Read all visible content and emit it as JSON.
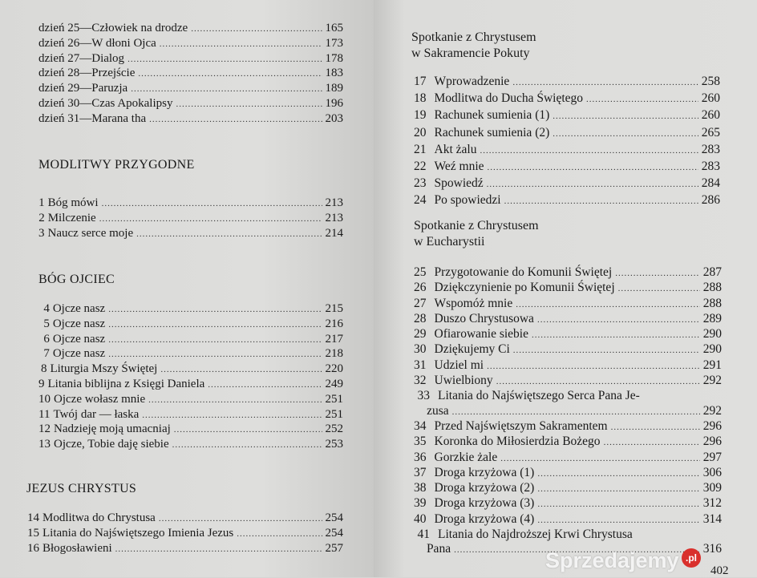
{
  "left_page": {
    "days": [
      {
        "day": "dzień 25",
        "title": "—Człowiek na drodze",
        "page": "165"
      },
      {
        "day": "dzień 26",
        "title": "—W dłoni Ojca",
        "page": "173"
      },
      {
        "day": "dzień 27",
        "title": "—Dialog",
        "page": "178"
      },
      {
        "day": "dzień 28",
        "title": "—Przejście",
        "page": "183"
      },
      {
        "day": "dzień 29",
        "title": "—Paruzja",
        "page": "189"
      },
      {
        "day": "dzień 30",
        "title": "—Czas Apokalipsy",
        "page": "196"
      },
      {
        "day": "dzień 31",
        "title": "—Marana tha",
        "page": "203"
      }
    ],
    "sections": [
      {
        "heading": "MODLITWY PRZYGODNE",
        "entries": [
          {
            "num": "1",
            "title": "Bóg mówi",
            "page": "213"
          },
          {
            "num": "2",
            "title": "Milczenie",
            "page": "213"
          },
          {
            "num": "3",
            "title": "Naucz serce moje",
            "page": "214"
          }
        ]
      },
      {
        "heading": "BÓG OJCIEC",
        "entries": [
          {
            "num": "4",
            "title": "Ojcze nasz",
            "page": "215"
          },
          {
            "num": "5",
            "title": "Ojcze nasz",
            "page": "216"
          },
          {
            "num": "6",
            "title": "Ojcze nasz",
            "page": "217"
          },
          {
            "num": "7",
            "title": "Ojcze nasz",
            "page": "218"
          },
          {
            "num": "8",
            "title": "Liturgia Mszy Świętej",
            "page": "220"
          },
          {
            "num": "9",
            "title": "Litania biblijna z Księgi Daniela",
            "page": "249"
          },
          {
            "num": "10",
            "title": "Ojcze wołasz mnie",
            "page": "251"
          },
          {
            "num": "11",
            "title": "Twój dar — łaska",
            "page": "251"
          },
          {
            "num": "12",
            "title": "Nadzieję moją umacniaj",
            "page": "252"
          },
          {
            "num": "13",
            "title": "Ojcze, Tobie daję siebie",
            "page": "253"
          }
        ]
      },
      {
        "heading": "JEZUS CHRYSTUS",
        "entries": [
          {
            "num": "14",
            "title": "Modlitwa do Chrystusa",
            "page": "254"
          },
          {
            "num": "15",
            "title": "Litania do Najświętszego Imienia Jezus",
            "page": "254"
          },
          {
            "num": "16",
            "title": "Błogosławieni",
            "page": "257"
          }
        ]
      }
    ]
  },
  "right_page": {
    "sections": [
      {
        "heading_lines": [
          "Spotkanie z Chrystusem",
          "w Sakramencie Pokuty"
        ],
        "entries": [
          {
            "num": "17",
            "title": "Wprowadzenie",
            "page": "258"
          },
          {
            "num": "18",
            "title": "Modlitwa do Ducha Świętego",
            "page": "260"
          },
          {
            "num": "19",
            "title": "Rachunek sumienia (1)",
            "page": "260"
          },
          {
            "num": "20",
            "title": "Rachunek sumienia (2)",
            "page": "265"
          },
          {
            "num": "21",
            "title": "Akt żalu",
            "page": "283"
          },
          {
            "num": "22",
            "title": "Weź mnie",
            "page": "283"
          },
          {
            "num": "23",
            "title": "Spowiedź",
            "page": "284"
          },
          {
            "num": "24",
            "title": "Po spowiedzi",
            "page": "286"
          }
        ]
      },
      {
        "heading_lines": [
          "Spotkanie z Chrystusem",
          "w Eucharystii"
        ],
        "entries": [
          {
            "num": "25",
            "title": "Przygotowanie do Komunii Świętej",
            "page": "287"
          },
          {
            "num": "26",
            "title": "Dziękczynienie po Komunii Świętej",
            "page": "288"
          },
          {
            "num": "27",
            "title": "Wspomóż mnie",
            "page": "288"
          },
          {
            "num": "28",
            "title": "Duszo Chrystusowa",
            "page": "289"
          },
          {
            "num": "29",
            "title": "Ofiarowanie siebie",
            "page": "290"
          },
          {
            "num": "30",
            "title": "Dziękujemy Ci",
            "page": "290"
          },
          {
            "num": "31",
            "title": "Udziel mi",
            "page": "291"
          },
          {
            "num": "32",
            "title": "Uwielbiony",
            "page": "292"
          },
          {
            "num": "33",
            "title": "Litania do Najświętszego Serca Pana Je-",
            "continuation": "zusa",
            "page": "292"
          },
          {
            "num": "34",
            "title": "Przed Najświętszym Sakramentem",
            "page": "296"
          },
          {
            "num": "35",
            "title": "Koronka do Miłosierdzia Bożego",
            "page": "296"
          },
          {
            "num": "36",
            "title": "Gorzkie żale",
            "page": "297"
          },
          {
            "num": "37",
            "title": "Droga krzyżowa (1)",
            "page": "306"
          },
          {
            "num": "38",
            "title": "Droga krzyżowa (2)",
            "page": "309"
          },
          {
            "num": "39",
            "title": "Droga krzyżowa (3)",
            "page": "312"
          },
          {
            "num": "40",
            "title": "Droga krzyżowa (4)",
            "page": "314"
          },
          {
            "num": "41",
            "title": "Litania do Najdroższej Krwi Chrystusa",
            "continuation": "Pana",
            "page": "316"
          }
        ]
      }
    ],
    "folio": "402"
  },
  "watermark": {
    "text": "Sprzedajemy",
    "badge": ".pl",
    "color": "#d9302c"
  }
}
